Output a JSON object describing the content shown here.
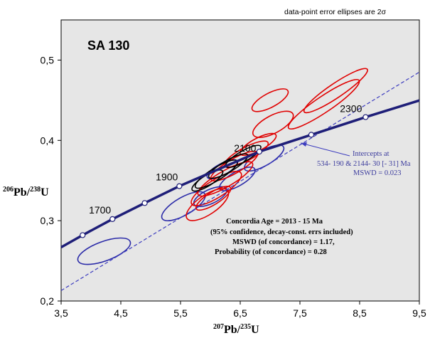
{
  "chart_data": {
    "type": "scatter",
    "title": "SA 130",
    "note": "data-point error ellipses are 2σ",
    "xlabel": {
      "sup": "207",
      "main": "Pb/",
      "sup2": "235",
      "end": "U"
    },
    "ylabel": {
      "sup": "206",
      "main": "Pb/",
      "sup2": "238",
      "end": "U"
    },
    "xlim": [
      3.5,
      9.5
    ],
    "ylim": [
      0.2,
      0.55
    ],
    "xticks": [
      3.5,
      4.5,
      5.5,
      6.5,
      7.5,
      8.5,
      9.5
    ],
    "xtick_labels": [
      "3,5",
      "4,5",
      "5,5",
      "6,5",
      "7,5",
      "8,5",
      "9,5"
    ],
    "yticks": [
      0.2,
      0.3,
      0.4,
      0.5
    ],
    "ytick_labels": [
      "0,2",
      "0,3",
      "0,4",
      "0,5"
    ],
    "concordia_age_markers": [
      {
        "age": 1700,
        "x": 4.36,
        "y": 0.302,
        "label": "1700"
      },
      {
        "age": 1600,
        "x": 3.86,
        "y": 0.282,
        "label": ""
      },
      {
        "age": 1800,
        "x": 4.9,
        "y": 0.322,
        "label": ""
      },
      {
        "age": 1900,
        "x": 5.48,
        "y": 0.343,
        "label": "1900"
      },
      {
        "age": 2100,
        "x": 6.82,
        "y": 0.386,
        "label": "2100"
      },
      {
        "age": 2200,
        "x": 7.69,
        "y": 0.407,
        "label": ""
      },
      {
        "age": 2300,
        "x": 8.6,
        "y": 0.429,
        "label": "2300"
      }
    ],
    "discordia": {
      "x0": 3.5,
      "y0": 0.213,
      "x1": 9.5,
      "y1": 0.485
    },
    "ellipses": [
      {
        "color": "#2a2aa8",
        "cx": 4.22,
        "cy": 0.262,
        "rx": 0.62,
        "ry": 0.022,
        "angle": 20
      },
      {
        "color": "#2a2aa8",
        "cx": 5.55,
        "cy": 0.318,
        "rx": 0.55,
        "ry": 0.02,
        "angle": 30
      },
      {
        "color": "#2a2aa8",
        "cx": 6.0,
        "cy": 0.33,
        "rx": 0.4,
        "ry": 0.016,
        "angle": 25
      },
      {
        "color": "#2a2aa8",
        "cx": 6.45,
        "cy": 0.352,
        "rx": 0.45,
        "ry": 0.016,
        "angle": 30
      },
      {
        "color": "#2a2aa8",
        "cx": 6.9,
        "cy": 0.378,
        "rx": 0.5,
        "ry": 0.017,
        "angle": 30
      },
      {
        "color": "#2a2aa8",
        "cx": 6.2,
        "cy": 0.364,
        "rx": 0.38,
        "ry": 0.013,
        "angle": 28
      },
      {
        "color": "#e00000",
        "cx": 5.95,
        "cy": 0.32,
        "rx": 0.55,
        "ry": 0.022,
        "angle": 34
      },
      {
        "color": "#e00000",
        "cx": 6.1,
        "cy": 0.34,
        "rx": 0.65,
        "ry": 0.02,
        "angle": 32
      },
      {
        "color": "#e00000",
        "cx": 6.25,
        "cy": 0.352,
        "rx": 0.7,
        "ry": 0.018,
        "angle": 30
      },
      {
        "color": "#e00000",
        "cx": 6.4,
        "cy": 0.368,
        "rx": 0.6,
        "ry": 0.016,
        "angle": 30
      },
      {
        "color": "#e00000",
        "cx": 6.6,
        "cy": 0.383,
        "rx": 0.55,
        "ry": 0.015,
        "angle": 28
      },
      {
        "color": "#e00000",
        "cx": 6.8,
        "cy": 0.395,
        "rx": 0.45,
        "ry": 0.014,
        "angle": 28
      },
      {
        "color": "#e00000",
        "cx": 7.05,
        "cy": 0.42,
        "rx": 0.5,
        "ry": 0.02,
        "angle": 28
      },
      {
        "color": "#e00000",
        "cx": 7.0,
        "cy": 0.45,
        "rx": 0.45,
        "ry": 0.016,
        "angle": 28
      },
      {
        "color": "#e00000",
        "cx": 7.9,
        "cy": 0.445,
        "rx": 0.95,
        "ry": 0.018,
        "angle": 34
      },
      {
        "color": "#e00000",
        "cx": 8.1,
        "cy": 0.462,
        "rx": 0.85,
        "ry": 0.016,
        "angle": 34
      },
      {
        "color": "#e00000",
        "cx": 6.05,
        "cy": 0.328,
        "rx": 0.45,
        "ry": 0.014,
        "angle": 32
      },
      {
        "color": "#000000",
        "cx": 6.1,
        "cy": 0.358,
        "rx": 0.55,
        "ry": 0.014,
        "angle": 32
      },
      {
        "color": "#000000",
        "cx": 6.3,
        "cy": 0.368,
        "rx": 0.5,
        "ry": 0.013,
        "angle": 30
      },
      {
        "color": "#000000",
        "cx": 6.55,
        "cy": 0.38,
        "rx": 0.45,
        "ry": 0.012,
        "angle": 30
      },
      {
        "color": "#000000",
        "cx": 5.95,
        "cy": 0.35,
        "rx": 0.4,
        "ry": 0.012,
        "angle": 32
      }
    ],
    "intercepts_label": [
      "Intercepts at",
      "534- 190  & 2144- 30    [- 31]   Ma",
      "MSWD = 0.023"
    ],
    "concordia_stats": [
      "Concordia  Age = 2013 - 15 Ma",
      "(95% confidence, decay-const. errs included)",
      "MSWD  (of concordance)  = 1.17,",
      "Probability  (of concordance)  = 0.28"
    ]
  }
}
